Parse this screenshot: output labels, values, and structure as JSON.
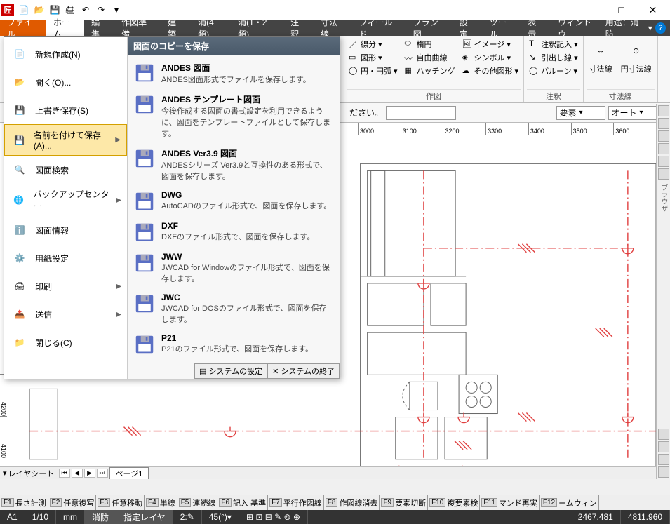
{
  "app_icon_text": "匠",
  "window": {
    "min": "—",
    "max": "□",
    "close": "✕"
  },
  "menubar": {
    "items": [
      "ファイル",
      "ホーム",
      "編集",
      "作図準備",
      "建築",
      "消(4類)",
      "消(1・2類)",
      "注釈",
      "寸法線",
      "フィールド",
      "プラン図",
      "設定",
      "ツール",
      "表示",
      "ウィンドウ"
    ],
    "right_label": "用途：消防",
    "help": "?"
  },
  "ribbon": {
    "groups": [
      {
        "label": "作図",
        "cols": [
          [
            "線分",
            "図形",
            "円・円弧"
          ],
          [
            "楕円",
            "自由曲線",
            "ハッチング"
          ],
          [
            "イメージ",
            "シンボル",
            "その他図形"
          ]
        ]
      },
      {
        "label": "注釈",
        "cols": [
          [
            "注釈記入",
            "引出し線",
            "バルーン"
          ]
        ]
      },
      {
        "label": "寸法線",
        "big": [
          "寸法線",
          "円寸法線"
        ]
      }
    ]
  },
  "subtoolbar": {
    "prompt": "ださい。",
    "dropdown1": "要素",
    "dropdown2": "オート"
  },
  "ruler_h": [
    "3000",
    "3100",
    "3200",
    "3300",
    "3400",
    "3500",
    "3600"
  ],
  "ruler_v": [
    "4200",
    "4100"
  ],
  "tabbar": {
    "dropdown": "レイヤシート",
    "page": "ページ1"
  },
  "right_toolbar_label": "ブラウザ",
  "fkeys": [
    {
      "k": "F1",
      "t": "長さ計測"
    },
    {
      "k": "F2",
      "t": "任意複写"
    },
    {
      "k": "F3",
      "t": "任意移動"
    },
    {
      "k": "F4",
      "t": "単線"
    },
    {
      "k": "F5",
      "t": "連続線"
    },
    {
      "k": "F6",
      "t": "記入 基準"
    },
    {
      "k": "F7",
      "t": "平行作図線"
    },
    {
      "k": "F8",
      "t": "作図線消去"
    },
    {
      "k": "F9",
      "t": "要素切断"
    },
    {
      "k": "F10",
      "t": "複要素検"
    },
    {
      "k": "F11",
      "t": "マンド再実"
    },
    {
      "k": "F12",
      "t": "ームウィン"
    }
  ],
  "status": {
    "cells": [
      "A1",
      "1/10",
      "mm",
      "消防",
      "指定レイヤ",
      "2:"
    ],
    "angle": "45(°)",
    "coord_x": "2467.481",
    "coord_y": "4811.960"
  },
  "file_menu": {
    "left": [
      {
        "label": "新規作成(N)",
        "icon": "new"
      },
      {
        "label": "開く(O)...",
        "icon": "open"
      },
      {
        "label": "上書き保存(S)",
        "icon": "save"
      },
      {
        "label": "名前を付けて保存(A)...",
        "icon": "saveas",
        "selected": true,
        "arrow": true
      },
      {
        "label": "図面検索",
        "icon": "search"
      },
      {
        "label": "バックアップセンター",
        "icon": "backup",
        "arrow": true
      },
      {
        "label": "図面情報",
        "icon": "info"
      },
      {
        "label": "用紙設定",
        "icon": "page"
      },
      {
        "label": "印刷",
        "icon": "print",
        "arrow": true
      },
      {
        "label": "送信",
        "icon": "send",
        "arrow": true
      },
      {
        "label": "閉じる(C)",
        "icon": "close"
      }
    ],
    "right_header": "図面のコピーを保存",
    "right_items": [
      {
        "title": "ANDES 図面",
        "desc": "ANDES図面形式でファイルを保存します。"
      },
      {
        "title": "ANDES テンプレート図面",
        "desc": "今後作成する図面の書式設定を利用できるように、図面をテンプレートファイルとして保存します。"
      },
      {
        "title": "ANDES Ver3.9 図面",
        "desc": "ANDESシリーズ Ver3.9と互換性のある形式で、図面を保存します。"
      },
      {
        "title": "DWG",
        "desc": "AutoCADのファイル形式で、図面を保存します。"
      },
      {
        "title": "DXF",
        "desc": "DXFのファイル形式で、図面を保存します。"
      },
      {
        "title": "JWW",
        "desc": "JWCAD for Windowのファイル形式で、図面を保存します。"
      },
      {
        "title": "JWC",
        "desc": "JWCAD for DOSのファイル形式で、図面を保存します。"
      },
      {
        "title": "P21",
        "desc": "P21のファイル形式で、図面を保存します。"
      }
    ],
    "footer": {
      "settings": "システムの設定",
      "exit": "システムの終了"
    }
  },
  "colors": {
    "accent": "#e05a00",
    "menubar": "#444444",
    "filemenu_header": "#5a6a7a",
    "red_annot": "#e04040",
    "draw_line": "#666666",
    "statusbar": "#333333"
  }
}
